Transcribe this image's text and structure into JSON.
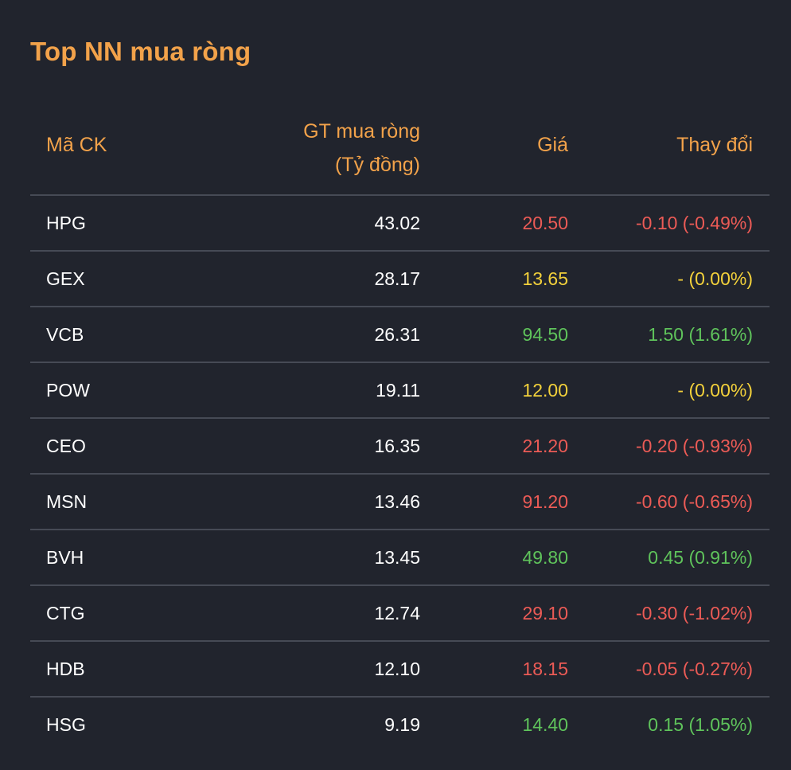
{
  "title": "Top NN mua ròng",
  "columns": {
    "code": "Mã CK",
    "value_line1": "GT mua ròng",
    "value_line2": "(Tỷ đồng)",
    "price": "Giá",
    "change": "Thay đổi"
  },
  "colors": {
    "accent": "#f2a24a",
    "down": "#ec5b56",
    "unchanged": "#f3d13b",
    "up": "#5fc35b",
    "background": "#21242d",
    "divider": "#464a55"
  },
  "rows": [
    {
      "code": "HPG",
      "value": "43.02",
      "price": "20.50",
      "change": "-0.10 (-0.49%)",
      "trend": "red"
    },
    {
      "code": "GEX",
      "value": "28.17",
      "price": "13.65",
      "change": "- (0.00%)",
      "trend": "yellow"
    },
    {
      "code": "VCB",
      "value": "26.31",
      "price": "94.50",
      "change": "1.50 (1.61%)",
      "trend": "green"
    },
    {
      "code": "POW",
      "value": "19.11",
      "price": "12.00",
      "change": "- (0.00%)",
      "trend": "yellow"
    },
    {
      "code": "CEO",
      "value": "16.35",
      "price": "21.20",
      "change": "-0.20 (-0.93%)",
      "trend": "red"
    },
    {
      "code": "MSN",
      "value": "13.46",
      "price": "91.20",
      "change": "-0.60 (-0.65%)",
      "trend": "red"
    },
    {
      "code": "BVH",
      "value": "13.45",
      "price": "49.80",
      "change": "0.45 (0.91%)",
      "trend": "green"
    },
    {
      "code": "CTG",
      "value": "12.74",
      "price": "29.10",
      "change": "-0.30 (-1.02%)",
      "trend": "red"
    },
    {
      "code": "HDB",
      "value": "12.10",
      "price": "18.15",
      "change": "-0.05 (-0.27%)",
      "trend": "red"
    },
    {
      "code": "HSG",
      "value": "9.19",
      "price": "14.40",
      "change": "0.15 (1.05%)",
      "trend": "green"
    }
  ]
}
